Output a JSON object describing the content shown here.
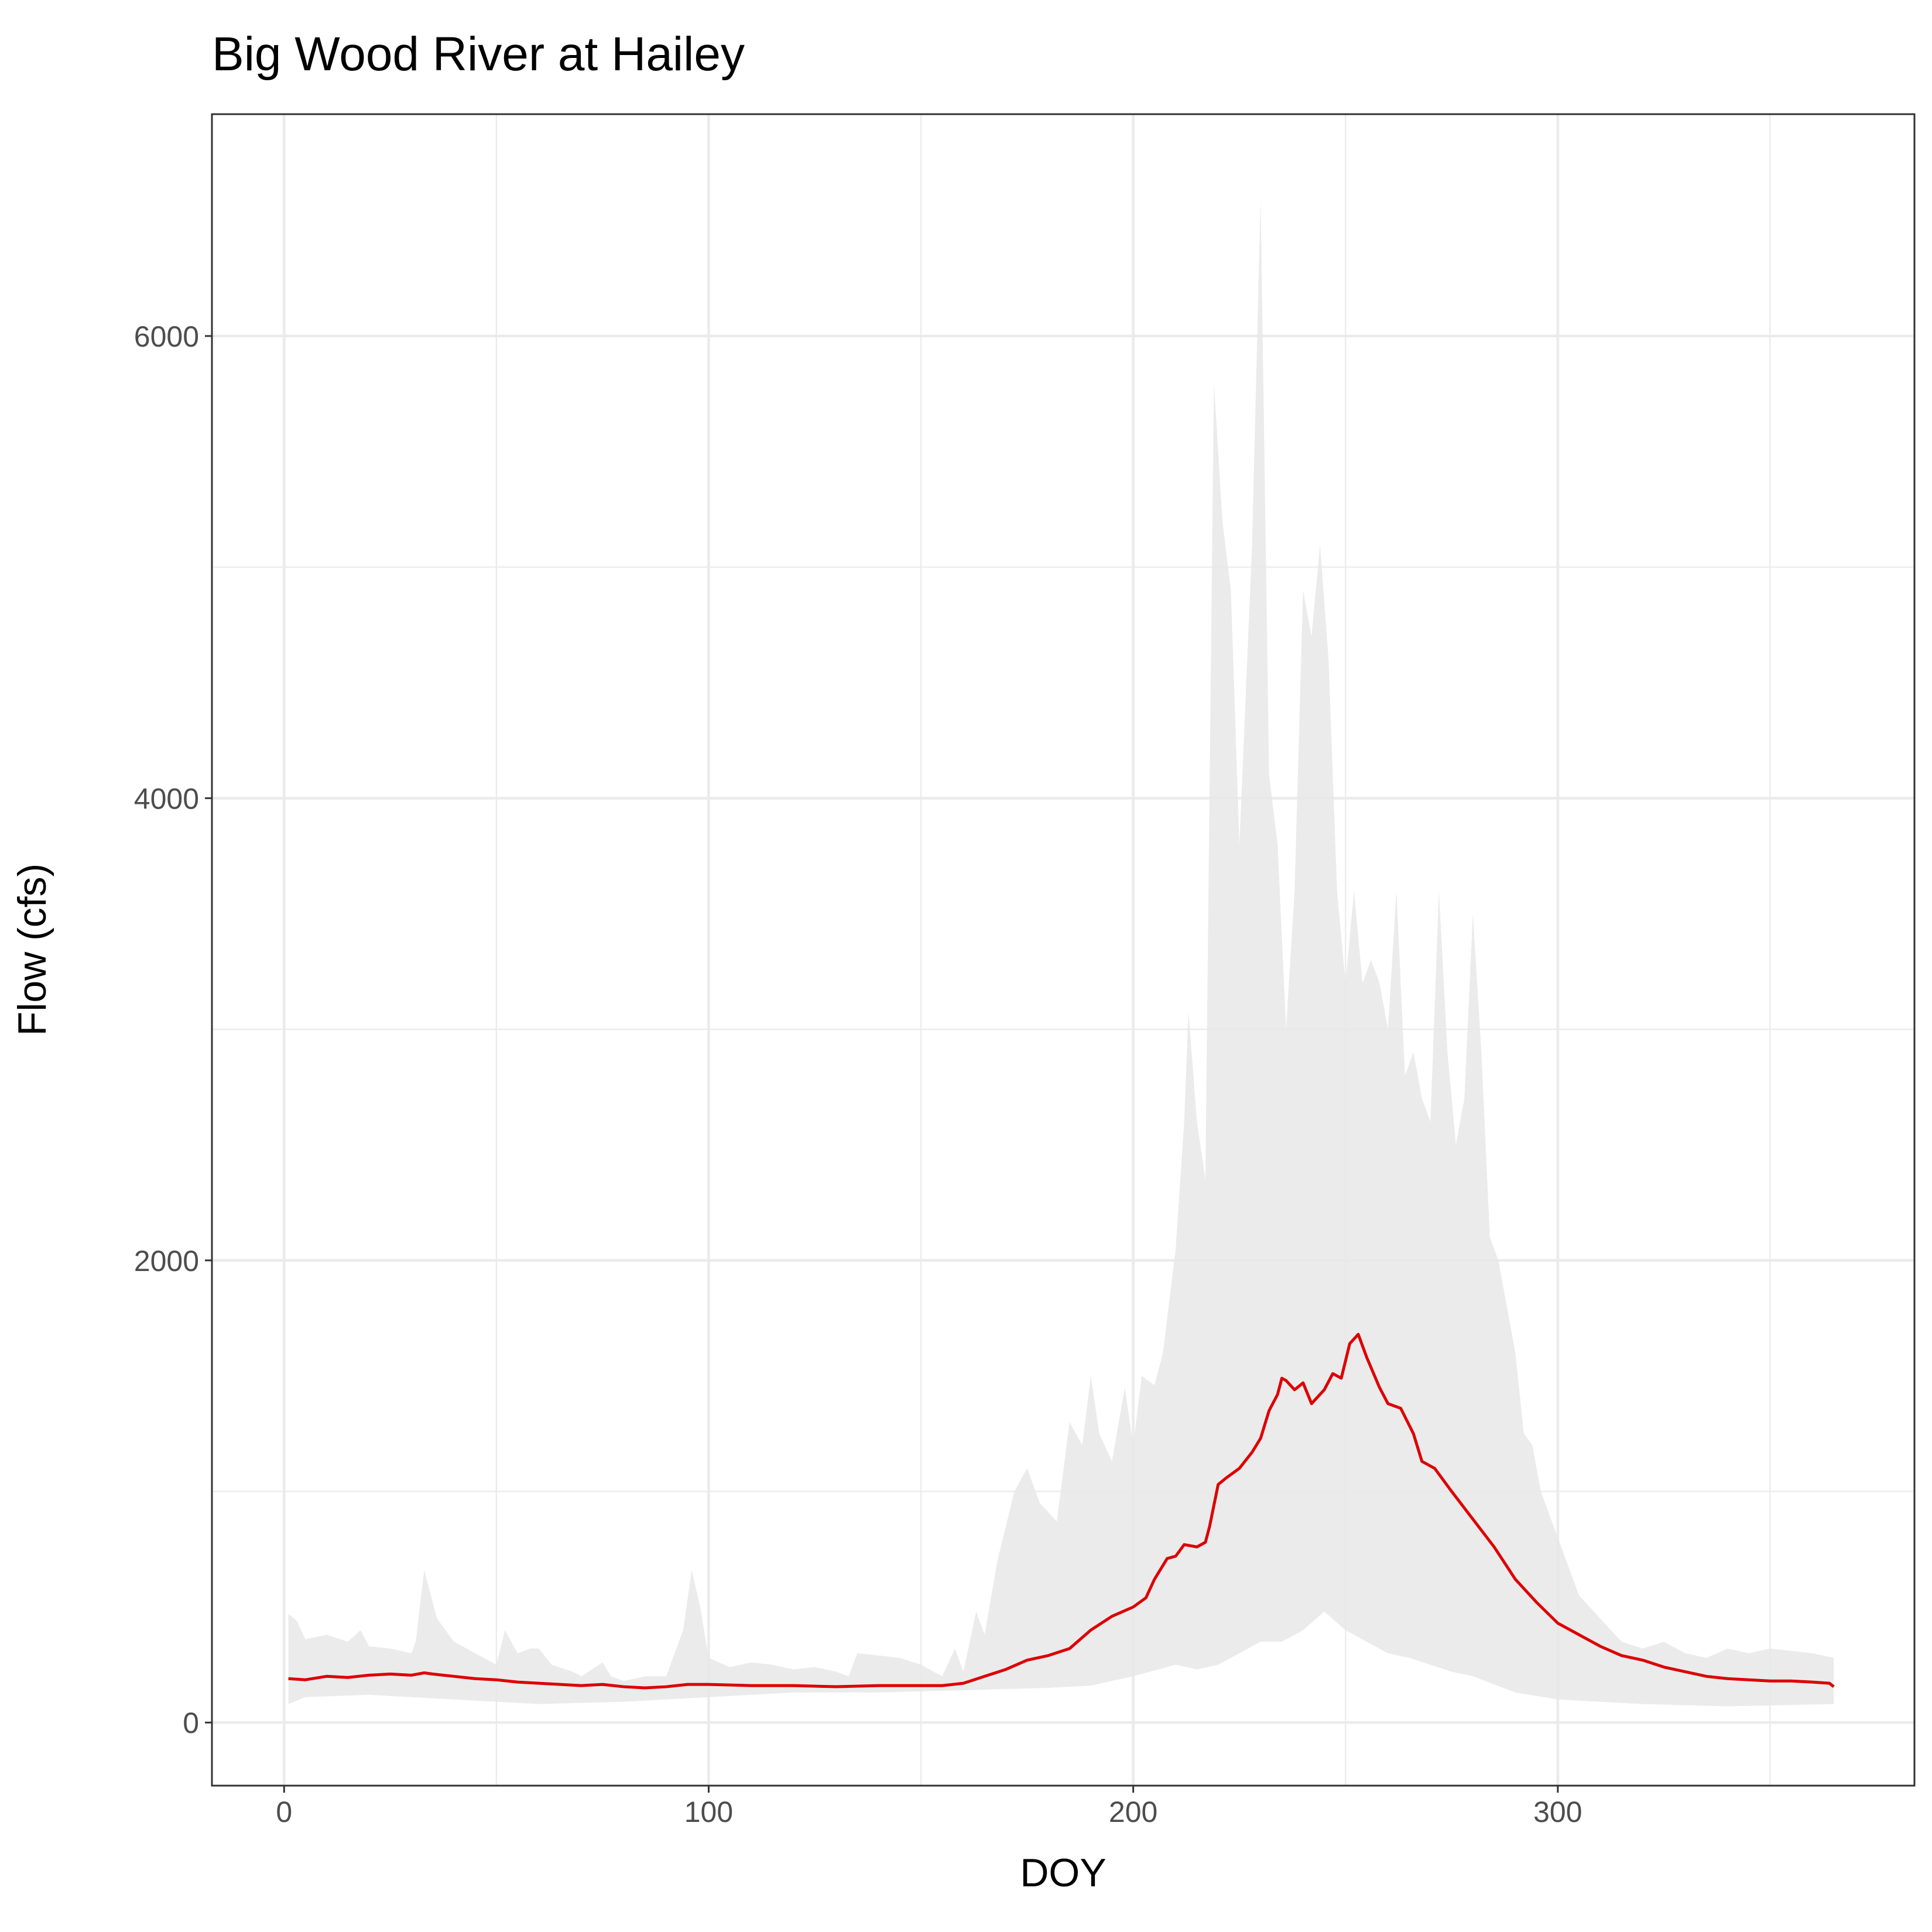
{
  "chart_data": {
    "type": "line",
    "title": "Big Wood River at Hailey",
    "xlabel": "DOY",
    "ylabel": "Flow (cfs)",
    "xlim": [
      -17,
      384
    ],
    "ylim": [
      -273,
      6960
    ],
    "xticks": [
      0,
      100,
      200,
      300
    ],
    "yticks": [
      0,
      2000,
      4000,
      6000
    ],
    "grid": true,
    "x": [
      1,
      5,
      10,
      15,
      20,
      25,
      30,
      33,
      35,
      40,
      45,
      50,
      55,
      60,
      65,
      70,
      75,
      80,
      85,
      90,
      95,
      100,
      110,
      120,
      130,
      140,
      150,
      155,
      160,
      165,
      170,
      175,
      180,
      185,
      190,
      195,
      200,
      203,
      205,
      208,
      210,
      212,
      215,
      217,
      218,
      220,
      222,
      225,
      228,
      230,
      232,
      234,
      235,
      236,
      238,
      240,
      242,
      244,
      245,
      247,
      249,
      251,
      253,
      255,
      258,
      260,
      263,
      266,
      268,
      271,
      275,
      280,
      285,
      290,
      295,
      300,
      305,
      310,
      315,
      320,
      325,
      330,
      335,
      340,
      345,
      350,
      355,
      360,
      364,
      365
    ],
    "series": [
      {
        "color": "#dd0000",
        "values": [
          190,
          185,
          200,
          195,
          205,
          210,
          205,
          215,
          210,
          200,
          190,
          185,
          175,
          170,
          165,
          160,
          165,
          155,
          150,
          155,
          165,
          165,
          160,
          160,
          155,
          160,
          160,
          160,
          170,
          200,
          230,
          270,
          290,
          320,
          400,
          460,
          500,
          540,
          620,
          710,
          720,
          770,
          760,
          780,
          850,
          1030,
          1060,
          1100,
          1170,
          1230,
          1350,
          1420,
          1490,
          1480,
          1440,
          1470,
          1380,
          1420,
          1440,
          1510,
          1490,
          1640,
          1680,
          1580,
          1450,
          1380,
          1360,
          1250,
          1130,
          1100,
          1000,
          880,
          760,
          620,
          520,
          430,
          380,
          330,
          290,
          270,
          240,
          220,
          200,
          190,
          185,
          180,
          180,
          175,
          170,
          155
        ]
      }
    ],
    "band": {
      "color": "#e8e8e8",
      "x_high": [
        1,
        3,
        5,
        10,
        15,
        18,
        20,
        25,
        30,
        31,
        33,
        36,
        40,
        45,
        50,
        52,
        55,
        58,
        60,
        63,
        68,
        70,
        75,
        77,
        80,
        85,
        90,
        94,
        96,
        98,
        100,
        105,
        110,
        115,
        120,
        125,
        130,
        133,
        135,
        140,
        145,
        150,
        155,
        158,
        160,
        163,
        165,
        168,
        172,
        175,
        178,
        182,
        185,
        188,
        190,
        192,
        195,
        198,
        200,
        202,
        205,
        207,
        210,
        212,
        213,
        215,
        217,
        219,
        221,
        223,
        225,
        228,
        230,
        232,
        234,
        236,
        238,
        240,
        242,
        244,
        246,
        248,
        250,
        252,
        254,
        256,
        258,
        260,
        262,
        264,
        266,
        268,
        270,
        272,
        274,
        276,
        278,
        280,
        282,
        284,
        286,
        288,
        290,
        292,
        294,
        296,
        298,
        300,
        305,
        310,
        315,
        320,
        325,
        330,
        335,
        340,
        345,
        350,
        355,
        360,
        365
      ],
      "high": [
        470,
        440,
        360,
        380,
        350,
        400,
        330,
        320,
        300,
        350,
        660,
        450,
        350,
        300,
        250,
        400,
        300,
        320,
        320,
        250,
        220,
        200,
        260,
        200,
        180,
        200,
        200,
        400,
        660,
        500,
        280,
        240,
        260,
        250,
        230,
        240,
        220,
        200,
        300,
        290,
        280,
        250,
        200,
        320,
        220,
        480,
        380,
        700,
        1000,
        1100,
        950,
        870,
        1300,
        1200,
        1500,
        1250,
        1130,
        1450,
        1200,
        1500,
        1460,
        1600,
        2050,
        2600,
        3080,
        2600,
        2350,
        5800,
        5200,
        4900,
        3800,
        5100,
        6600,
        4100,
        3800,
        3000,
        3600,
        4900,
        4700,
        5100,
        4600,
        3600,
        3200,
        3600,
        3200,
        3300,
        3200,
        3000,
        3600,
        2800,
        2900,
        2700,
        2600,
        3600,
        2900,
        2500,
        2700,
        3500,
        2900,
        2100,
        2000,
        1800,
        1600,
        1250,
        1200,
        1000,
        900,
        800,
        550,
        450,
        350,
        320,
        350,
        300,
        280,
        320,
        300,
        320,
        310,
        300,
        280
      ],
      "x_low": [
        1,
        5,
        20,
        40,
        60,
        80,
        100,
        120,
        140,
        160,
        180,
        190,
        200,
        210,
        215,
        220,
        225,
        230,
        235,
        240,
        245,
        250,
        255,
        260,
        265,
        270,
        275,
        280,
        290,
        300,
        310,
        320,
        340,
        365
      ],
      "low": [
        80,
        110,
        120,
        100,
        80,
        90,
        110,
        130,
        130,
        140,
        150,
        160,
        200,
        250,
        230,
        250,
        300,
        350,
        350,
        400,
        480,
        400,
        350,
        300,
        280,
        250,
        220,
        200,
        130,
        100,
        90,
        80,
        70,
        80
      ]
    }
  }
}
